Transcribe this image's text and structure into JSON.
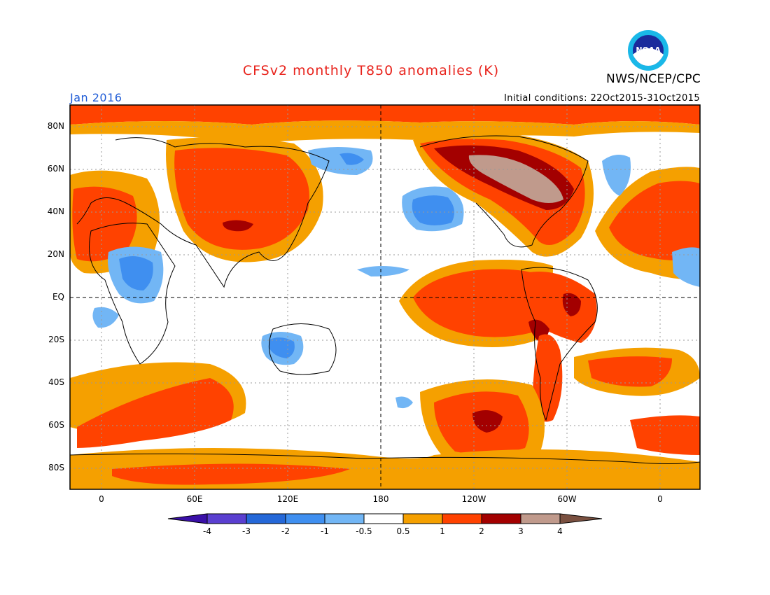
{
  "header": {
    "title": "CFSv2 monthly T850 anomalies (K)",
    "agency": "NWS/NCEP/CPC",
    "logo_text": "NOAA",
    "month": "Jan 2016",
    "initial_conditions": "Initial conditions: 22Oct2015-31Oct2015"
  },
  "axes": {
    "lat_labels": [
      "80N",
      "60N",
      "40N",
      "20N",
      "EQ",
      "20S",
      "40S",
      "60S",
      "80S"
    ],
    "lon_labels": [
      "0",
      "60E",
      "120E",
      "180",
      "120W",
      "60W",
      "0"
    ]
  },
  "colorbar": {
    "labels": [
      "-4",
      "-3",
      "-2",
      "-1",
      "-0.5",
      "0.5",
      "1",
      "2",
      "3",
      "4"
    ],
    "colors": {
      "lt_-4": "#3a10a8",
      "-4_-3": "#5a3fd0",
      "-3_-2": "#2568d8",
      "-2_-1": "#3f8ff0",
      "-1_-0.5": "#72b6f5",
      "-0.5_0.5": "#ffffff",
      "0.5_1": "#f5a000",
      "1_2": "#ff4200",
      "2_3": "#a30000",
      "3_4": "#c09a8c",
      "gt_4": "#7a5040"
    }
  }
}
